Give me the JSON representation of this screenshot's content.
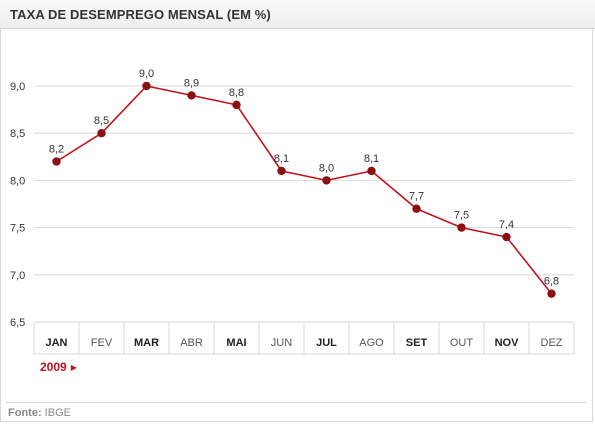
{
  "header": {
    "title": "TAXA DE DESEMPREGO MENSAL (EM %)"
  },
  "year_selector": {
    "label": "2009",
    "arrow": "▶"
  },
  "footer": {
    "source_label": "Fonte:",
    "source_value": "IBGE"
  },
  "colors": {
    "line": "#c0141c",
    "point": "#8b1014",
    "grid": "#d9d9d9"
  },
  "chart_data": {
    "type": "line",
    "title": "TAXA DE DESEMPREGO MENSAL (EM %)",
    "categories": [
      "JAN",
      "FEV",
      "MAR",
      "ABR",
      "MAI",
      "JUN",
      "JUL",
      "AGO",
      "SET",
      "OUT",
      "NOV",
      "DEZ"
    ],
    "bold_categories": [
      "JAN",
      "MAR",
      "MAI",
      "JUL",
      "SET",
      "NOV"
    ],
    "values": [
      8.2,
      8.5,
      9.0,
      8.9,
      8.8,
      8.1,
      8.0,
      8.1,
      7.7,
      7.5,
      7.4,
      6.8
    ],
    "value_labels": [
      "8,2",
      "8,5",
      "9,0",
      "8,9",
      "8,8",
      "8,1",
      "8,0",
      "8,1",
      "7,7",
      "7,5",
      "7,4",
      "6,8"
    ],
    "yticks": [
      6.5,
      7.0,
      7.5,
      8.0,
      8.5,
      9.0
    ],
    "ytick_labels": [
      "6,5",
      "7,0",
      "7,5",
      "8,0",
      "8,5",
      "9,0"
    ],
    "ylim": [
      6.5,
      9.0
    ],
    "grid": true,
    "xlabel": "",
    "ylabel": ""
  }
}
